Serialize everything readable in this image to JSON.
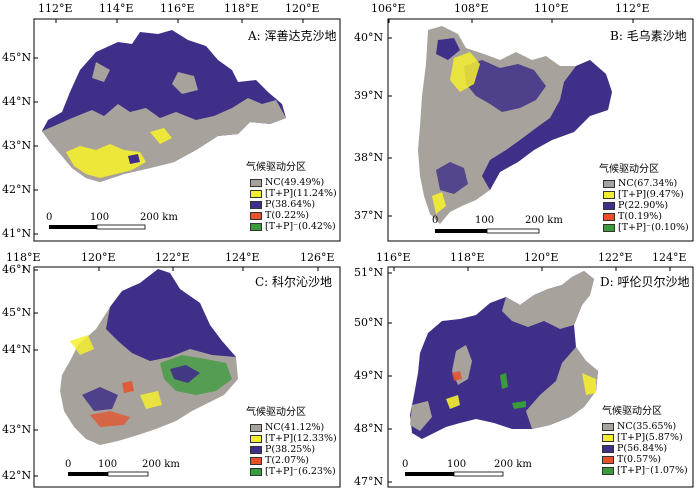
{
  "colors": {
    "NC": "#a8a29c",
    "TP": "#f4ee30",
    "P": "#3f2f88",
    "T": "#e6502a",
    "TPm": "#3a9b3a"
  },
  "panels": [
    {
      "id": "A",
      "title": "A: 浑善达克沙地",
      "x_ticks": [
        "112°E",
        "114°E",
        "116°E",
        "118°E",
        "120°E"
      ],
      "y_ticks": [
        "45°N",
        "44°N",
        "43°N",
        "42°N",
        "41°N"
      ],
      "legend": {
        "title": "气候驱动分区",
        "items": [
          {
            "key": "NC",
            "label": "NC(49.49%)",
            "value": 49.49
          },
          {
            "key": "TP",
            "label": "[T+P](11.24%)",
            "value": 11.24
          },
          {
            "key": "P",
            "label": "P(38.64%)",
            "value": 38.64
          },
          {
            "key": "T",
            "label": "T(0.22%)",
            "value": 0.22
          },
          {
            "key": "TPm",
            "label": "[T+P]⁻(0.42%)",
            "value": 0.42
          }
        ]
      },
      "scale": {
        "labels": [
          "0",
          "100",
          "200 km"
        ]
      }
    },
    {
      "id": "B",
      "title": "B: 毛乌素沙地",
      "x_ticks": [
        "106°E",
        "108°E",
        "110°E",
        "112°E"
      ],
      "y_ticks": [
        "40°N",
        "39°N",
        "38°N",
        "37°N"
      ],
      "legend": {
        "title": "气候驱动分区",
        "items": [
          {
            "key": "NC",
            "label": "NC(67.34%)",
            "value": 67.34
          },
          {
            "key": "TP",
            "label": "[T+P](9.47%)",
            "value": 9.47
          },
          {
            "key": "P",
            "label": "P(22.90%)",
            "value": 22.9
          },
          {
            "key": "T",
            "label": "T(0.19%)",
            "value": 0.19
          },
          {
            "key": "TPm",
            "label": "[T+P]⁻(0.10%)",
            "value": 0.1
          }
        ]
      },
      "scale": {
        "labels": [
          "0",
          "100",
          "200 km"
        ]
      }
    },
    {
      "id": "C",
      "title": "C: 科尔沁沙地",
      "x_ticks": [
        "118°E",
        "120°E",
        "122°E",
        "124°E",
        "126°E"
      ],
      "y_ticks": [
        "46°N",
        "45°N",
        "44°N",
        "43°N",
        "42°N"
      ],
      "legend": {
        "title": "气候驱动分区",
        "items": [
          {
            "key": "NC",
            "label": "NC(41.12%)",
            "value": 41.12
          },
          {
            "key": "TP",
            "label": "[T+P](12.33%)",
            "value": 12.33
          },
          {
            "key": "P",
            "label": "P(38.25%)",
            "value": 38.25
          },
          {
            "key": "T",
            "label": "T(2.07%)",
            "value": 2.07
          },
          {
            "key": "TPm",
            "label": "[T+P]⁻(6.23%)",
            "value": 6.23
          }
        ]
      },
      "scale": {
        "labels": [
          "0",
          "100",
          "200 km"
        ]
      }
    },
    {
      "id": "D",
      "title": "D: 呼伦贝尔沙地",
      "x_ticks": [
        "116°E",
        "118°E",
        "120°E",
        "122°E",
        "124°E"
      ],
      "y_ticks": [
        "51°N",
        "50°N",
        "49°N",
        "48°N",
        "47°N"
      ],
      "legend": {
        "title": "气候驱动分区",
        "items": [
          {
            "key": "NC",
            "label": "NC(35.65%)",
            "value": 35.65
          },
          {
            "key": "TP",
            "label": "[T+P](5.87%)",
            "value": 5.87
          },
          {
            "key": "P",
            "label": "P(56.84%)",
            "value": 56.84
          },
          {
            "key": "T",
            "label": "T(0.57%)",
            "value": 0.57
          },
          {
            "key": "TPm",
            "label": "[T+P]⁻(1.07%)",
            "value": 1.07
          }
        ]
      },
      "scale": {
        "labels": [
          "0",
          "100",
          "200 km"
        ]
      }
    }
  ]
}
